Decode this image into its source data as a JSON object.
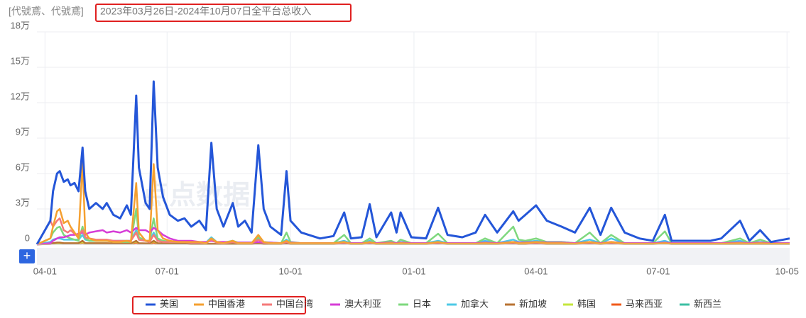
{
  "chart_data": {
    "type": "line",
    "title_prefix": "[代號鳶、代號鳶]",
    "title": "2023年03月26日-2024年10月07日全平台总收入",
    "watermark": "点点数据",
    "zoom_button": "+",
    "x": [
      0,
      10,
      12,
      15,
      17,
      20,
      23,
      25,
      28,
      31,
      34,
      36,
      39,
      44,
      49,
      52,
      57,
      62,
      67,
      70,
      74,
      76,
      81,
      84,
      87,
      90,
      94,
      99,
      105,
      110,
      115,
      121,
      126,
      130,
      134,
      139,
      146,
      150,
      155,
      160,
      165,
      169,
      174,
      182,
      186,
      189,
      197,
      211,
      221,
      229,
      234,
      242,
      248,
      253,
      264,
      268,
      271,
      279,
      290,
      299,
      306,
      317,
      327,
      334,
      343,
      355,
      359,
      364,
      372,
      380,
      391,
      401,
      412,
      420,
      428,
      438,
      449,
      459,
      468,
      473,
      502,
      510,
      524,
      531,
      539,
      547,
      561
    ],
    "xlim": [
      0,
      561
    ],
    "xticks": [
      {
        "value": 6,
        "label": "04-01"
      },
      {
        "value": 97,
        "label": "07-01"
      },
      {
        "value": 189,
        "label": "10-01"
      },
      {
        "value": 281,
        "label": "01-01"
      },
      {
        "value": 372,
        "label": "04-01"
      },
      {
        "value": 463,
        "label": "07-01"
      },
      {
        "value": 559,
        "label": "10-05"
      }
    ],
    "ylim": [
      0,
      180000
    ],
    "yticks": [
      0,
      {
        "value": 30000,
        "label": "3万"
      },
      {
        "value": 60000,
        "label": "6万"
      },
      {
        "value": 90000,
        "label": "9万"
      },
      {
        "value": 120000,
        "label": "12万"
      },
      {
        "value": 150000,
        "label": "15万"
      },
      {
        "value": 180000,
        "label": "18万"
      }
    ],
    "grid": true,
    "legend": "bottom",
    "series": [
      {
        "name": "美国",
        "color": "#2456d8",
        "values": [
          0,
          20000,
          45000,
          60000,
          62000,
          53000,
          55000,
          50000,
          52000,
          45000,
          82000,
          45000,
          30000,
          35000,
          30000,
          35000,
          25000,
          22000,
          33000,
          25000,
          126000,
          65000,
          35000,
          30000,
          138000,
          65000,
          40000,
          25000,
          20000,
          22000,
          15000,
          20000,
          12000,
          86000,
          30000,
          15000,
          35000,
          15000,
          20000,
          10000,
          84000,
          30000,
          15000,
          8000,
          62000,
          20000,
          10000,
          5000,
          7000,
          27000,
          5000,
          6000,
          34000,
          6000,
          27000,
          10000,
          27000,
          6000,
          5000,
          31000,
          8000,
          6000,
          10000,
          25000,
          10000,
          28000,
          20000,
          25000,
          33000,
          20000,
          15000,
          10000,
          31000,
          8000,
          31000,
          10000,
          5000,
          3000,
          25000,
          3000,
          3000,
          5000,
          20000,
          3000,
          12000,
          2000,
          5000
        ]
      },
      {
        "name": "中国香港",
        "color": "#f5a030",
        "values": [
          0,
          5000,
          15000,
          28000,
          30000,
          18000,
          20000,
          15000,
          10000,
          5000,
          70000,
          10000,
          5000,
          3000,
          3000,
          3000,
          2000,
          2000,
          3000,
          2000,
          52000,
          10000,
          3000,
          3000,
          68000,
          12000,
          5000,
          3000,
          2000,
          2000,
          2000,
          2000,
          1000,
          5000,
          2000,
          1000,
          3000,
          1000,
          1000,
          1000,
          8000,
          2000,
          1000,
          1000,
          3000,
          1000,
          1000,
          1000,
          1000,
          2000,
          500,
          500,
          2000,
          500,
          1000,
          500,
          1000,
          500,
          500,
          2000,
          500,
          500,
          500,
          1000,
          500,
          2000,
          1000,
          1000,
          2000,
          1000,
          1000,
          500,
          2000,
          500,
          2000,
          500,
          500,
          500,
          1000,
          500,
          500,
          500,
          1000,
          500,
          1000,
          500,
          500
        ]
      },
      {
        "name": "中国台湾",
        "color": "#f57a7a",
        "values": [
          0,
          20000,
          15000,
          20000,
          22000,
          12000,
          10000,
          12000,
          9000,
          8000,
          12000,
          6000,
          5000,
          4000,
          4000,
          4000,
          3000,
          3000,
          3000,
          3000,
          10000,
          4000,
          3000,
          2000,
          8000,
          3000,
          2000,
          2000,
          2000,
          2000,
          1500,
          1500,
          1000,
          4000,
          1500,
          1000,
          2000,
          1000,
          1000,
          1000,
          4000,
          1500,
          1000,
          800,
          2000,
          1000,
          800,
          800,
          800,
          1500,
          500,
          500,
          1500,
          500,
          1000,
          500,
          1000,
          500,
          500,
          1500,
          500,
          500,
          500,
          1000,
          500,
          1500,
          800,
          800,
          1500,
          800,
          800,
          500,
          1500,
          500,
          1500,
          500,
          500,
          500,
          1000,
          500,
          500,
          500,
          1000,
          500,
          800,
          500,
          500
        ]
      },
      {
        "name": "澳大利亚",
        "color": "#d63cd6",
        "values": [
          0,
          1000,
          3000,
          5000,
          6000,
          6000,
          7000,
          8000,
          8000,
          9000,
          10000,
          8000,
          10000,
          11000,
          12000,
          10000,
          11000,
          10000,
          12000,
          10000,
          14000,
          12000,
          12000,
          10000,
          14000,
          12000,
          8000,
          5000,
          3000,
          3000,
          3000,
          2000,
          2000,
          3000,
          2000,
          2000,
          2000,
          1500,
          1500,
          1500,
          2000,
          1500,
          1500,
          1000,
          2000,
          1500,
          1000,
          1000,
          1000,
          1500,
          1000,
          1000,
          1500,
          1000,
          1500,
          1000,
          1500,
          1000,
          1000,
          1500,
          1000,
          1000,
          1000,
          1500,
          1000,
          2000,
          1500,
          1500,
          2000,
          1500,
          1500,
          1000,
          2000,
          1000,
          2000,
          1000,
          1000,
          1000,
          1500,
          1000,
          1000,
          1000,
          1500,
          1000,
          1500,
          1000,
          1000
        ]
      },
      {
        "name": "日本",
        "color": "#7ed87e",
        "values": [
          0,
          5000,
          10000,
          14000,
          15000,
          8000,
          6000,
          5000,
          4000,
          3000,
          15000,
          5000,
          3000,
          3000,
          3000,
          3000,
          2000,
          2000,
          2000,
          2000,
          30000,
          6000,
          3000,
          3000,
          22000,
          5000,
          3000,
          2000,
          2000,
          2000,
          2000,
          2000,
          1000,
          5000,
          2000,
          1000,
          3000,
          1000,
          1000,
          1000,
          6000,
          2000,
          1000,
          1000,
          10000,
          2000,
          1000,
          1000,
          1000,
          8000,
          1000,
          1000,
          5000,
          1000,
          3000,
          1000,
          4000,
          1000,
          1000,
          9000,
          1000,
          1000,
          1000,
          5000,
          1000,
          15000,
          4000,
          3000,
          5000,
          2000,
          2000,
          1000,
          10000,
          1000,
          8000,
          1000,
          1000,
          1000,
          11000,
          1000,
          1000,
          1000,
          5000,
          1000,
          4000,
          1000,
          1000
        ]
      },
      {
        "name": "加拿大",
        "color": "#4dc9e6",
        "values": [
          0,
          2000,
          4000,
          5000,
          5000,
          4000,
          4000,
          4000,
          4000,
          4000,
          8000,
          4000,
          3000,
          3000,
          3000,
          3000,
          3000,
          3000,
          3000,
          3000,
          12000,
          4000,
          3000,
          3000,
          10000,
          4000,
          3000,
          2000,
          2000,
          2000,
          2000,
          2000,
          1500,
          6000,
          2000,
          1500,
          3000,
          1500,
          1500,
          1500,
          5000,
          2000,
          1500,
          1000,
          4000,
          1500,
          1000,
          1000,
          1000,
          3000,
          1000,
          1000,
          3000,
          1000,
          2000,
          1000,
          2000,
          1000,
          1000,
          3000,
          1000,
          1000,
          1000,
          3000,
          1000,
          4000,
          2000,
          2000,
          3000,
          2000,
          2000,
          1000,
          4000,
          1000,
          5000,
          1000,
          1000,
          1000,
          3000,
          1000,
          1000,
          1000,
          3000,
          1000,
          2000,
          1000,
          1000
        ]
      },
      {
        "name": "新加坡",
        "color": "#b87333",
        "values": [
          0,
          500,
          1000,
          1500,
          1500,
          1000,
          1000,
          1000,
          1000,
          1000,
          3000,
          1000,
          1000,
          1000,
          1000,
          1000,
          800,
          800,
          800,
          800,
          3000,
          1000,
          800,
          800,
          3000,
          1000,
          800,
          800,
          800,
          800,
          500,
          500,
          500,
          500,
          500,
          500,
          500,
          500,
          500,
          500,
          1000,
          500,
          500,
          500,
          1000,
          500,
          500,
          500,
          500,
          1000,
          500,
          500,
          1000,
          500,
          500,
          500,
          500,
          500,
          500,
          1000,
          500,
          500,
          500,
          500,
          500,
          1000,
          500,
          500,
          1000,
          500,
          500,
          500,
          1000,
          500,
          1000,
          500,
          500,
          500,
          1000,
          500,
          500,
          500,
          500,
          500,
          500,
          500,
          500
        ]
      },
      {
        "name": "韩国",
        "color": "#c5e63c",
        "values": [
          0,
          500,
          800,
          1000,
          1000,
          800,
          800,
          800,
          800,
          800,
          2000,
          800,
          800,
          800,
          800,
          800,
          600,
          600,
          600,
          600,
          2500,
          800,
          600,
          600,
          2500,
          800,
          600,
          600,
          600,
          600,
          400,
          400,
          400,
          400,
          400,
          400,
          400,
          400,
          400,
          400,
          800,
          400,
          400,
          400,
          800,
          400,
          400,
          400,
          400,
          800,
          400,
          400,
          800,
          400,
          400,
          400,
          400,
          400,
          400,
          800,
          400,
          400,
          400,
          400,
          400,
          800,
          400,
          400,
          800,
          400,
          400,
          400,
          800,
          400,
          800,
          400,
          400,
          400,
          800,
          400,
          400,
          400,
          400,
          400,
          400,
          400,
          400
        ]
      },
      {
        "name": "马来西亚",
        "color": "#f05a1a",
        "values": [
          0,
          300,
          600,
          800,
          800,
          600,
          600,
          600,
          600,
          600,
          1500,
          600,
          600,
          600,
          600,
          600,
          500,
          500,
          500,
          500,
          1500,
          600,
          500,
          500,
          1500,
          600,
          500,
          500,
          500,
          500,
          300,
          300,
          300,
          300,
          300,
          300,
          300,
          300,
          300,
          300,
          600,
          300,
          300,
          300,
          600,
          300,
          300,
          300,
          300,
          600,
          300,
          300,
          600,
          300,
          300,
          300,
          300,
          300,
          300,
          600,
          300,
          300,
          300,
          300,
          300,
          600,
          300,
          300,
          600,
          300,
          300,
          300,
          600,
          300,
          600,
          300,
          300,
          300,
          600,
          300,
          300,
          300,
          300,
          300,
          300,
          300,
          300
        ]
      },
      {
        "name": "新西兰",
        "color": "#3cbfa3",
        "values": [
          0,
          400,
          700,
          900,
          900,
          700,
          700,
          700,
          700,
          700,
          1800,
          700,
          700,
          700,
          700,
          700,
          500,
          500,
          500,
          500,
          2000,
          700,
          500,
          500,
          2000,
          700,
          500,
          500,
          500,
          500,
          400,
          400,
          400,
          400,
          400,
          400,
          400,
          400,
          400,
          400,
          700,
          400,
          400,
          400,
          700,
          400,
          400,
          400,
          400,
          700,
          400,
          400,
          700,
          400,
          400,
          400,
          400,
          400,
          400,
          700,
          400,
          400,
          400,
          400,
          400,
          700,
          400,
          400,
          700,
          400,
          400,
          400,
          700,
          400,
          700,
          400,
          400,
          400,
          700,
          400,
          400,
          400,
          400,
          400,
          400,
          400,
          400
        ]
      }
    ]
  }
}
